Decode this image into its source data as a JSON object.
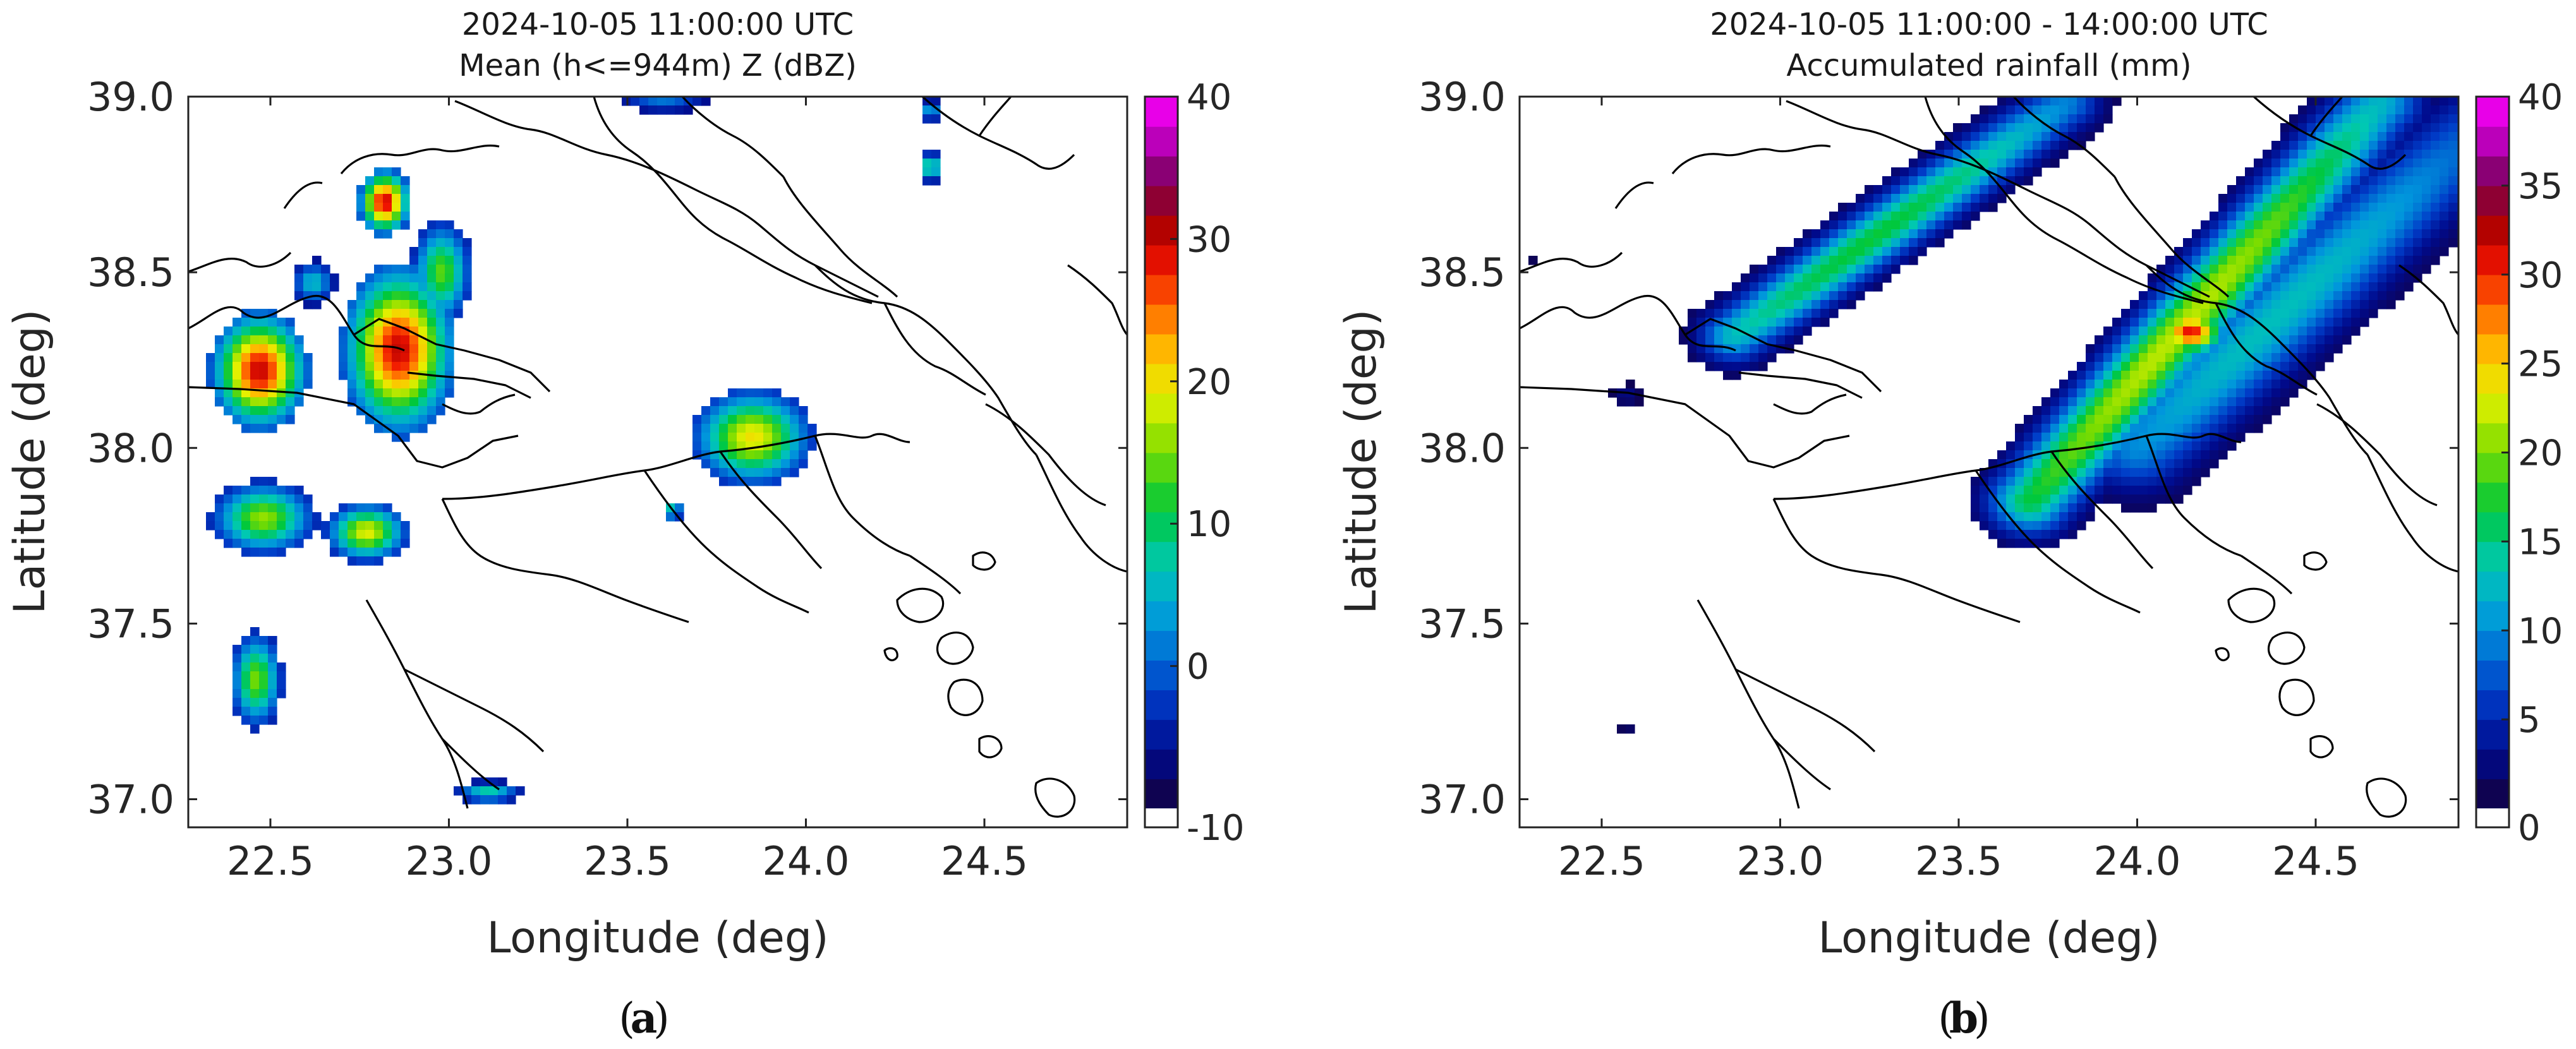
{
  "chart_data": [
    {
      "type": "heatmap",
      "panel_label": "a",
      "title_line1": "2024-10-05 11:00:00 UTC",
      "title_line2": "Mean (h<=944m) Z (dBZ)",
      "xlabel": "Longitude (deg)",
      "ylabel": "Latitude (deg)",
      "xlim": [
        22.27,
        24.9
      ],
      "ylim": [
        36.92,
        39.0
      ],
      "xticks": [
        22.5,
        23.0,
        23.5,
        24.0,
        24.5
      ],
      "xtick_labels": [
        "22.5",
        "23.0",
        "23.5",
        "24.0",
        "24.5"
      ],
      "yticks": [
        37.0,
        37.5,
        38.0,
        38.5,
        39.0
      ],
      "ytick_labels": [
        "37.0",
        "37.5",
        "38.0",
        "38.5",
        "39.0"
      ],
      "colorbar": {
        "min": -10,
        "max": 40,
        "ticks": [
          -10,
          0,
          10,
          20,
          30,
          40
        ],
        "tick_labels": [
          "-10",
          "0",
          "10",
          "20",
          "30",
          "40"
        ]
      },
      "cells": [
        {
          "lon": 22.47,
          "lat": 38.22,
          "peak": 30,
          "rlon": 0.13,
          "rlat": 0.16
        },
        {
          "lon": 22.62,
          "lat": 38.47,
          "peak": 6,
          "rlon": 0.06,
          "rlat": 0.06
        },
        {
          "lon": 22.86,
          "lat": 38.28,
          "peak": 30,
          "rlon": 0.15,
          "rlat": 0.23
        },
        {
          "lon": 22.98,
          "lat": 38.5,
          "peak": 14,
          "rlon": 0.08,
          "rlat": 0.14
        },
        {
          "lon": 22.82,
          "lat": 38.7,
          "peak": 30,
          "rlon": 0.07,
          "rlat": 0.09
        },
        {
          "lon": 22.48,
          "lat": 37.8,
          "peak": 16,
          "rlon": 0.14,
          "rlat": 0.1
        },
        {
          "lon": 22.77,
          "lat": 37.76,
          "peak": 19,
          "rlon": 0.11,
          "rlat": 0.08
        },
        {
          "lon": 22.46,
          "lat": 37.34,
          "peak": 15,
          "rlon": 0.07,
          "rlat": 0.13
        },
        {
          "lon": 23.11,
          "lat": 37.02,
          "peak": 8,
          "rlon": 0.09,
          "rlat": 0.03
        },
        {
          "lon": 23.85,
          "lat": 38.03,
          "peak": 20,
          "rlon": 0.16,
          "rlat": 0.13
        },
        {
          "lon": 23.63,
          "lat": 37.82,
          "peak": 20,
          "rlon": 0.02,
          "rlat": 0.02
        },
        {
          "lon": 24.35,
          "lat": 38.8,
          "peak": 12,
          "rlon": 0.03,
          "rlat": 0.04
        },
        {
          "lon": 24.35,
          "lat": 38.96,
          "peak": 5,
          "rlon": 0.03,
          "rlat": 0.03
        },
        {
          "lon": 23.6,
          "lat": 38.98,
          "peak": 3,
          "rlon": 0.12,
          "rlat": 0.02
        }
      ]
    },
    {
      "type": "heatmap",
      "panel_label": "b",
      "title_line1": "2024-10-05 11:00:00 - 14:00:00 UTC",
      "title_line2": "Accumulated rainfall (mm)",
      "xlabel": "Longitude (deg)",
      "ylabel": "Latitude (deg)",
      "xlim": [
        22.27,
        24.9
      ],
      "ylim": [
        36.92,
        39.0
      ],
      "xticks": [
        22.5,
        23.0,
        23.5,
        24.0,
        24.5
      ],
      "xtick_labels": [
        "22.5",
        "23.0",
        "23.5",
        "24.0",
        "24.5"
      ],
      "yticks": [
        37.0,
        37.5,
        38.0,
        38.5,
        39.0
      ],
      "ytick_labels": [
        "37.0",
        "37.5",
        "38.0",
        "38.5",
        "39.0"
      ],
      "colorbar": {
        "min": 0,
        "max": 40,
        "ticks": [
          0,
          5,
          10,
          15,
          20,
          25,
          30,
          35,
          40
        ],
        "tick_labels": [
          "0",
          "5",
          "10",
          "15",
          "20",
          "25",
          "30",
          "35",
          "40"
        ]
      },
      "bands": [
        {
          "lon0": 22.87,
          "lat0": 38.32,
          "lon1": 23.8,
          "lat1": 38.98,
          "width": 0.13,
          "peak": 17
        },
        {
          "lon0": 23.7,
          "lat0": 37.85,
          "lon1": 24.68,
          "lat1": 38.98,
          "width": 0.16,
          "peak": 22
        },
        {
          "lon0": 24.0,
          "lat0": 38.0,
          "lon1": 24.95,
          "lat1": 38.9,
          "width": 0.2,
          "peak": 13
        }
      ],
      "cells": [
        {
          "lon": 24.15,
          "lat": 38.33,
          "peak": 31,
          "rlon": 0.1,
          "rlat": 0.07
        },
        {
          "lon": 23.97,
          "lat": 38.2,
          "peak": 19,
          "rlon": 0.08,
          "rlat": 0.06
        },
        {
          "lon": 22.57,
          "lat": 38.15,
          "peak": 3,
          "rlon": 0.04,
          "rlat": 0.03
        },
        {
          "lon": 22.57,
          "lat": 37.2,
          "peak": 2,
          "rlon": 0.02,
          "rlat": 0.01
        },
        {
          "lon": 22.3,
          "lat": 38.53,
          "peak": 2,
          "rlon": 0.01,
          "rlat": 0.01
        }
      ]
    }
  ]
}
